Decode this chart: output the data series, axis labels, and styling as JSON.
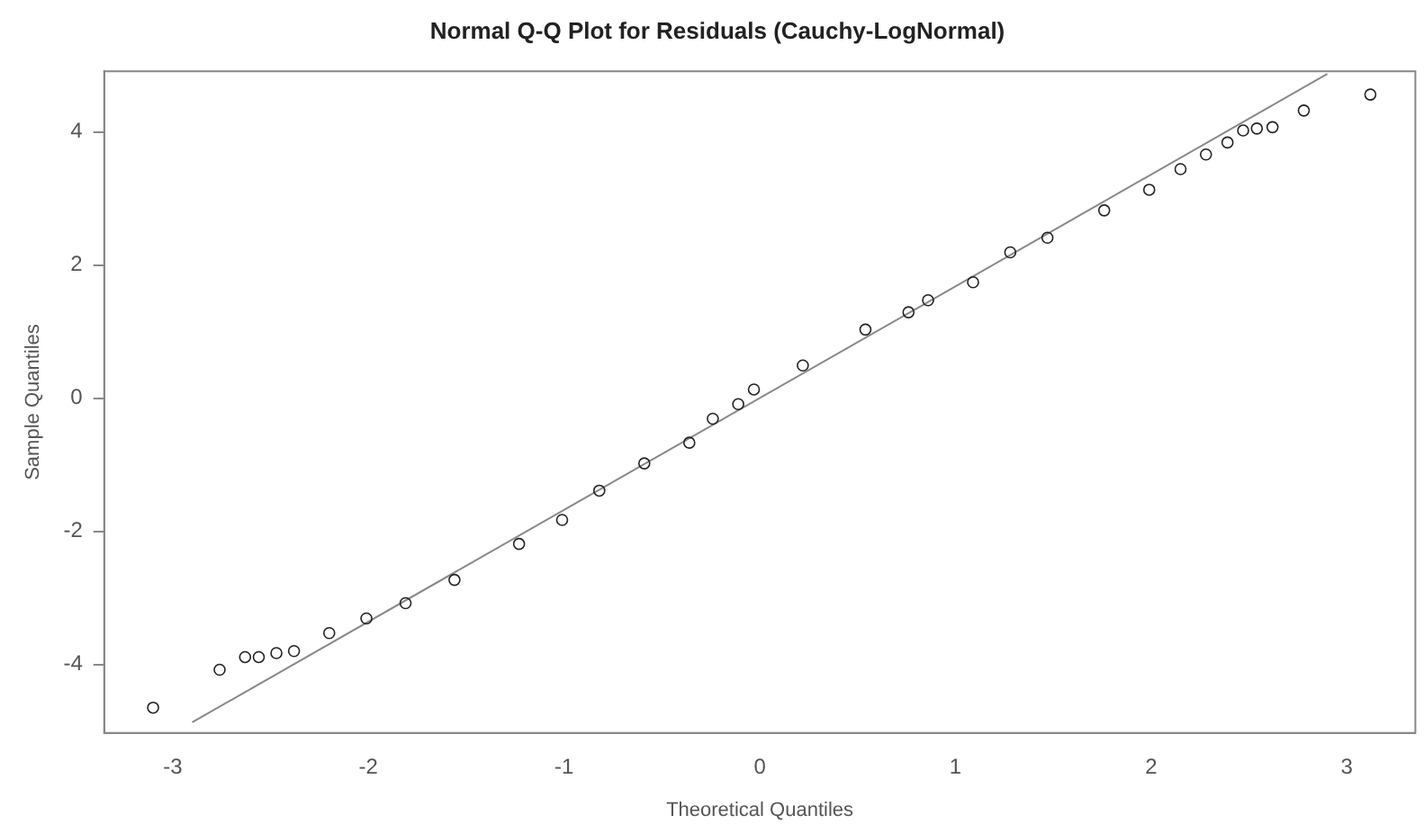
{
  "chart_data": {
    "type": "scatter",
    "title": "Normal Q-Q Plot for Residuals (Cauchy-LogNormal)",
    "xlabel": "Theoretical Quantiles",
    "ylabel": "Sample Quantiles",
    "xlim": [
      -3.35,
      3.35
    ],
    "ylim": [
      -5.03,
      4.91
    ],
    "xticks": [
      -3,
      -2,
      -1,
      0,
      1,
      2,
      3
    ],
    "yticks": [
      -4,
      -2,
      0,
      2,
      4
    ],
    "grid": false,
    "legend": false,
    "marker": "circle",
    "series": [
      {
        "color": "#222222",
        "x": [
          -3.1,
          -2.76,
          -2.63,
          -2.56,
          -2.47,
          -2.38,
          -2.2,
          -2.01,
          -1.81,
          -1.56,
          -1.23,
          -1.01,
          -0.82,
          -0.59,
          -0.36,
          -0.24,
          -0.11,
          -0.03,
          0.22,
          0.54,
          0.76,
          0.86,
          1.09,
          1.28,
          1.47,
          1.76,
          1.99,
          2.15,
          2.28,
          2.39,
          2.47,
          2.54,
          2.62,
          2.78,
          3.12
        ],
        "values": [
          -4.65,
          -4.08,
          -3.89,
          -3.89,
          -3.83,
          -3.8,
          -3.53,
          -3.31,
          -3.08,
          -2.73,
          -2.19,
          -1.83,
          -1.39,
          -0.98,
          -0.67,
          -0.31,
          -0.09,
          0.13,
          0.49,
          1.03,
          1.29,
          1.47,
          1.74,
          2.19,
          2.41,
          2.82,
          3.13,
          3.44,
          3.66,
          3.84,
          4.02,
          4.05,
          4.07,
          4.32,
          4.56
        ]
      },
      {
        "type": "line",
        "color": "#888888",
        "x": [
          -2.9,
          2.9
        ],
        "values": [
          -4.87,
          4.87
        ],
        "marker": "none"
      }
    ]
  }
}
